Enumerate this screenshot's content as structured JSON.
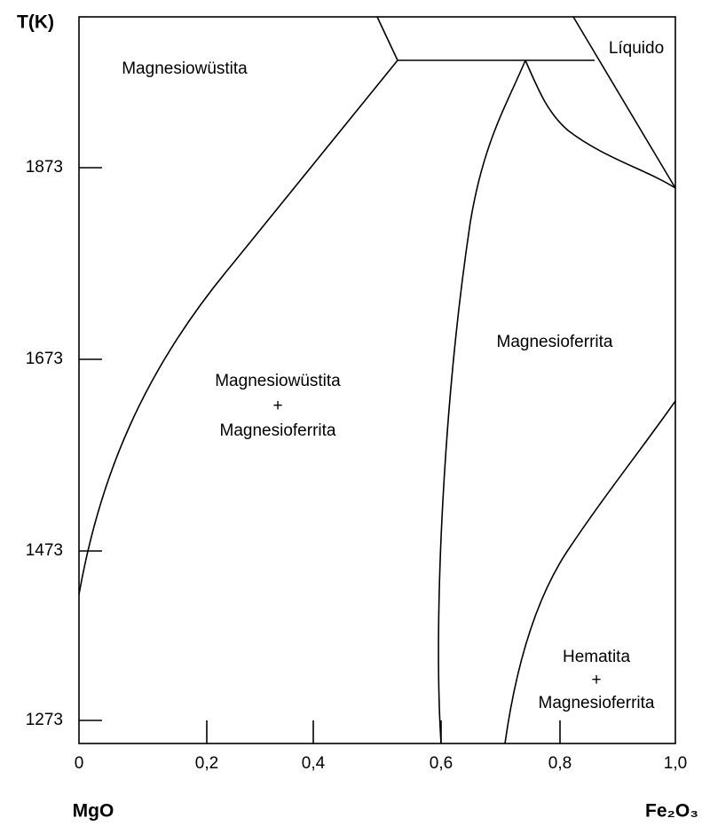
{
  "axes": {
    "y_title": "T(K)",
    "y_ticks": [
      "1873",
      "1673",
      "1473",
      "1273"
    ],
    "x_ticks": [
      "0",
      "0,2",
      "0,4",
      "0,6",
      "0,8",
      "1,0"
    ],
    "x_left_title": "MgO",
    "x_right_title": "Fe₂O₃"
  },
  "regions": [
    {
      "lines": [
        "Magnesiowüstita"
      ]
    },
    {
      "lines": [
        "Líquido"
      ]
    },
    {
      "lines": [
        "Magnesioferrita"
      ]
    },
    {
      "lines": [
        "Magnesiowüstita",
        "+",
        "Magnesioferrita"
      ]
    },
    {
      "lines": [
        "Hematita",
        "+",
        "Magnesioferrita"
      ]
    }
  ]
}
